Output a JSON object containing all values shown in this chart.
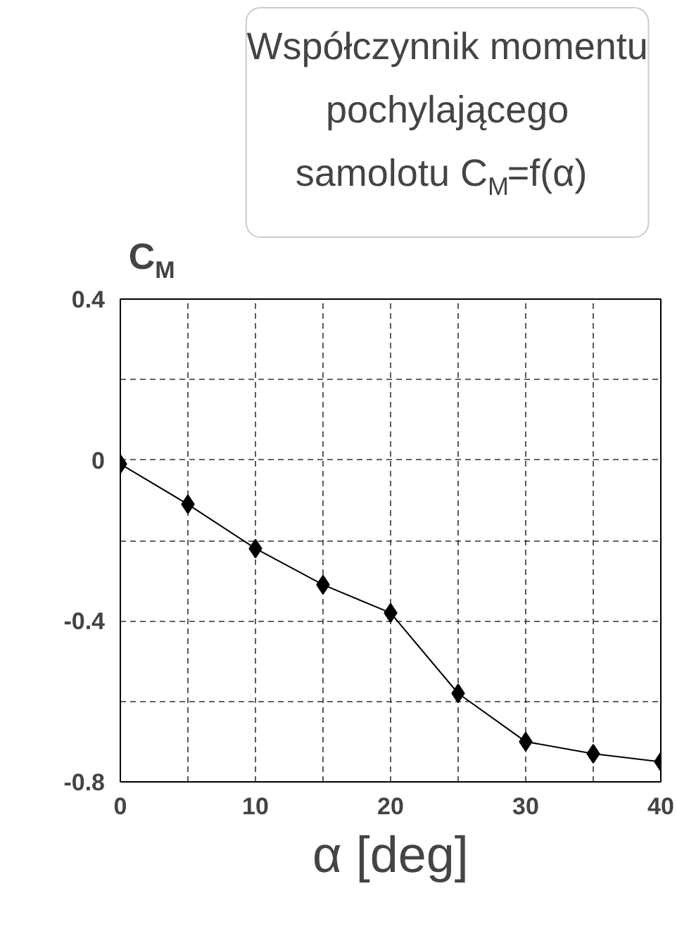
{
  "chart_data": {
    "type": "line",
    "title": "Współczynnik momentu\npochylającego\nsamolotu C$_{M}$=f(α)",
    "xlabel": "α [deg]",
    "ylabel": "C$_{M}$",
    "x": [
      0,
      5,
      10,
      15,
      20,
      25,
      30,
      35,
      40
    ],
    "series": [
      {
        "color": "#000000",
        "values": [
          -0.01,
          -0.11,
          -0.22,
          -0.31,
          -0.38,
          -0.58,
          -0.7,
          -0.73,
          -0.75
        ]
      }
    ],
    "xlim": [
      0,
      40
    ],
    "ylim": [
      -0.8,
      0.4
    ],
    "xticks": [
      0,
      {
        "value": 5,
        "label": null
      },
      10,
      {
        "value": 15,
        "label": null
      },
      20,
      {
        "value": 25,
        "label": null
      },
      30,
      {
        "value": 35,
        "label": null
      },
      40
    ],
    "yticks": [
      -0.8,
      {
        "value": -0.6,
        "label": null
      },
      -0.4,
      {
        "value": -0.2,
        "label": null
      },
      0,
      {
        "value": 0.2,
        "label": null
      },
      0.4
    ],
    "grid": true,
    "marker": "diamond",
    "line_style": "solid"
  }
}
